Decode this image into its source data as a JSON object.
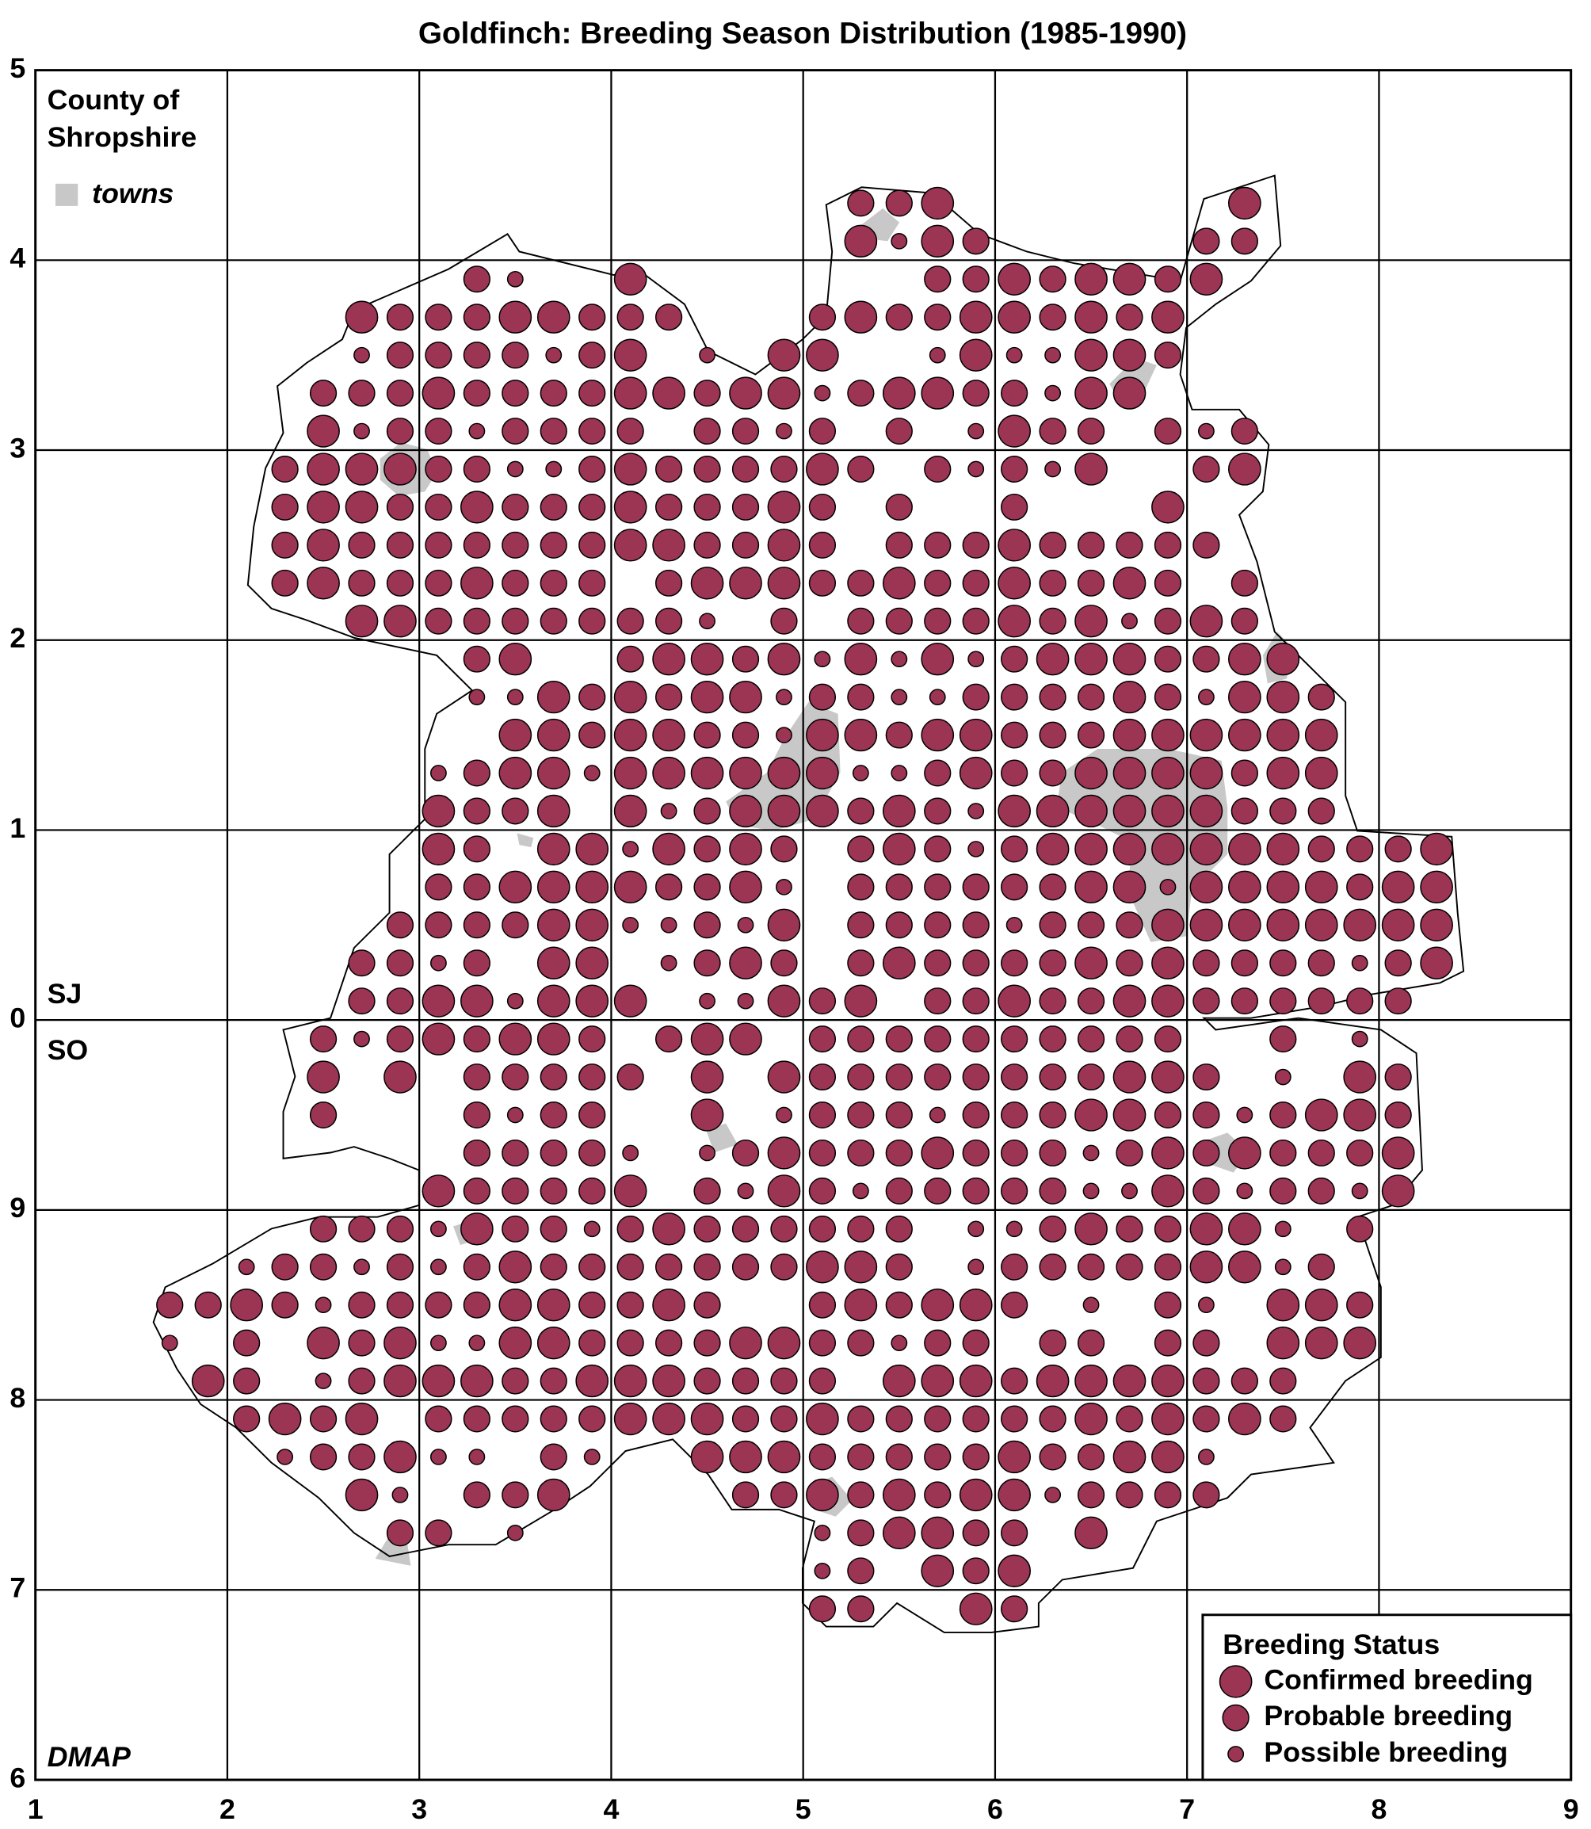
{
  "title": "Goldfinch: Breeding Season Distribution (1985-1990)",
  "dot_color": "#9b3553",
  "grid": {
    "eastings": [
      1,
      2,
      3,
      4,
      5,
      6,
      7,
      8,
      9
    ],
    "northings": [
      5,
      4,
      3,
      2,
      1,
      0,
      9,
      8,
      7,
      6
    ]
  },
  "county_label": [
    "County of",
    "Shropshire"
  ],
  "towns_label": "towns",
  "square_labels": [
    "SJ",
    "SO"
  ],
  "credit": "DMAP",
  "legend": {
    "title": "Breeding Status",
    "items": [
      "Confirmed breeding",
      "Probable breeding",
      "Possible breeding"
    ]
  },
  "records": {
    "rows": [
      "........................................",
      "........................................",
      "........................................",
      ".....................110.......0........",
      ".....................0201.....11........",
      "...........12..0.......11010010.........",
      "........011100111...1011001010..........",
      "........21111210.2.00..2022001..........",
      ".......1110111100100210011200...........",
      ".......021121111.1121.1.2011.121........",
      "......1000112210111101.12120..10........",
      "......100110111011101.1..1...0..........",
      "......101111111001101.111011111.........",
      "......101110111.10001101101101.1........",
      "........0011111112.1.11110102101........",
      "...........10..100102020210001100.......",
      "...........22010100211221111012001......",
      "............0010011200100111000000......",
      "..........210020000002210110000100......",
      "..........0110.0210001012000000111......",
      "..........01.0020101.1012100000001110...",
      "..........1100001102.1111110020000100...",
      ".........11110022120.1111211100000000...",
      "........1121.00.2101.1011110101111210...",
      "........11002000.22010.1101100111111....",
      ".......12101001.100.1111111111..1.2.....",
      ".......0.0.11111.0.011111111001.2.01....",
      ".......1...1211..0.21112111001121001....",
      "...........11112.2101110111210101110....",
      "..........011110.1201211111220121120....",
      ".......1112011210111111.221011002.1.....",
      ".....211212101111111001.2111110021......",
      "...110121111001101..101001.2.12.001.....",
      "...2.1.010220011110011211.11.11.000.....",
      "....01.21000110001111.00010000111.......",
      ".....1010.11111000110111111010101.......",
      "......211022.12..00011111011002.........",
      "........02.110....1101010021111.........",
      ".........11.2.......210011.0............",
      "....................21.010..............",
      "....................11..01..............",
      "........................................",
      "........................................",
      "........................................",
      "........................................"
    ]
  }
}
